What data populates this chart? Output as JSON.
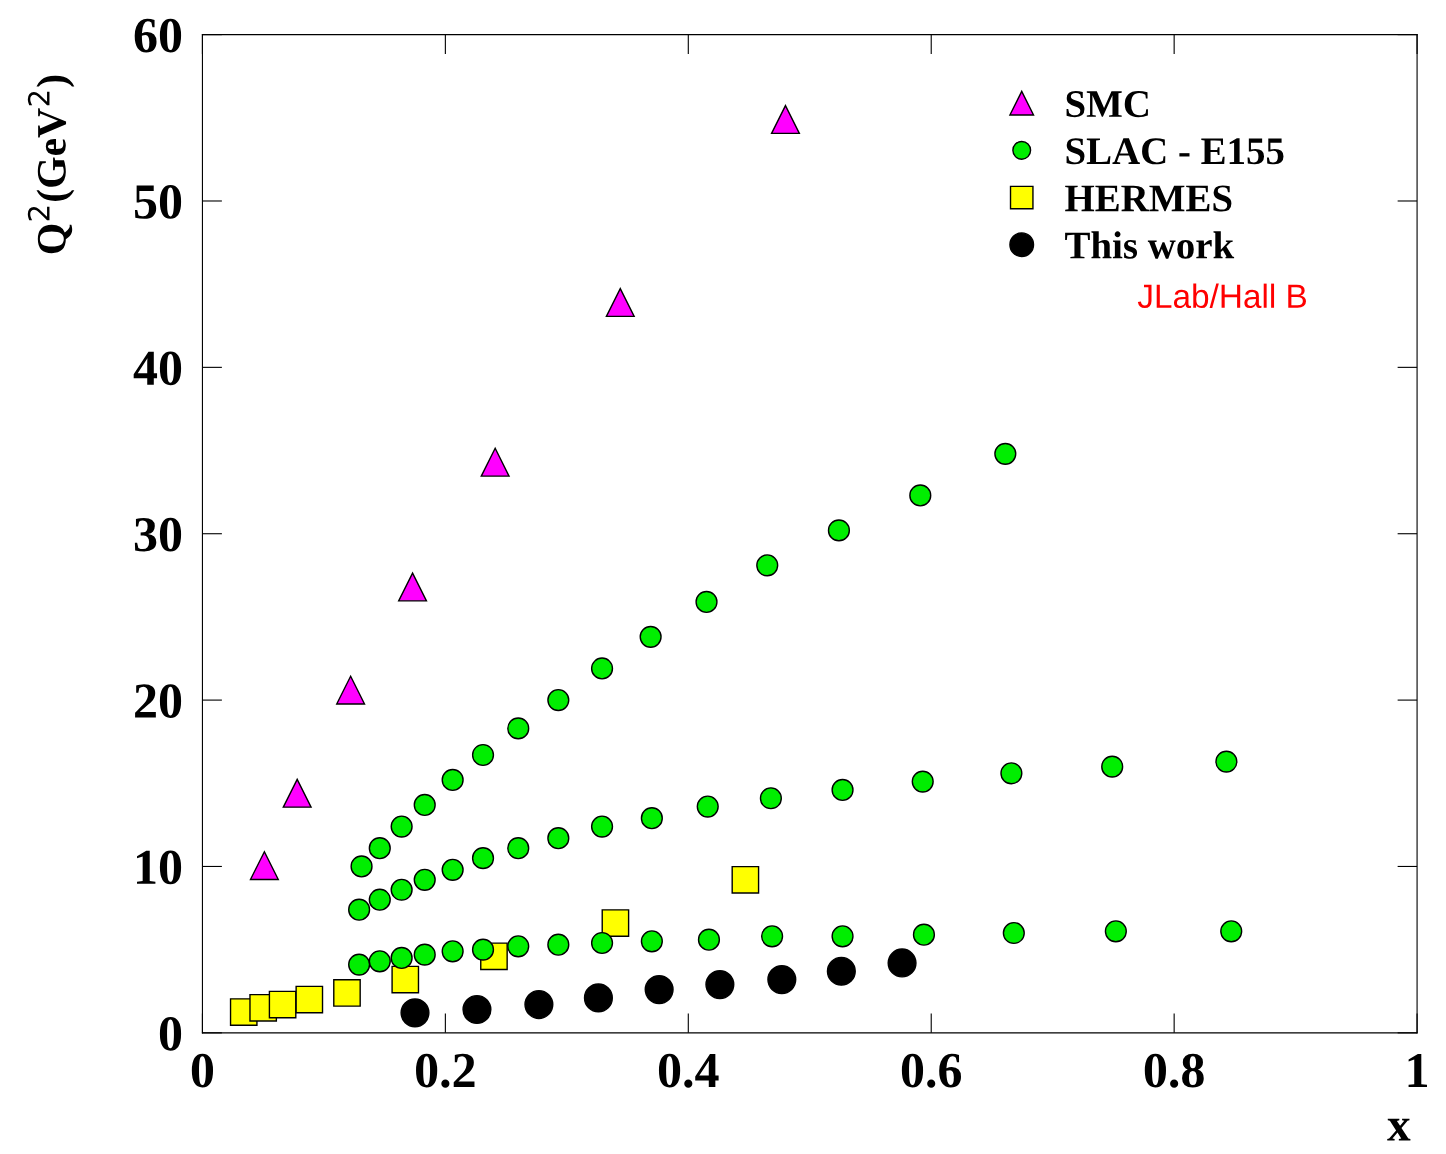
{
  "chart_data": {
    "type": "scatter",
    "xlabel": "x",
    "ylabel": "Q$^{2}$(GeV$^{2}$)",
    "xlim": [
      0,
      1
    ],
    "ylim": [
      0,
      60
    ],
    "xticks": [
      0,
      0.2,
      0.4,
      0.6,
      0.8,
      1
    ],
    "yticks": [
      0,
      10,
      20,
      30,
      40,
      50,
      60
    ],
    "grid": false,
    "legend": "top right",
    "annotations": [
      "JLab/Hall B"
    ],
    "series": [
      {
        "name": "SMC",
        "color": "#ff00ff",
        "marker": "triangle",
        "x": [
          0.051,
          0.078,
          0.122,
          0.173,
          0.241,
          0.344,
          0.48
        ],
        "values": [
          10.05,
          14.4,
          20.6,
          26.8,
          34.3,
          43.9,
          54.9
        ]
      },
      {
        "name": "SLAC - E155",
        "color": "#00ee00",
        "marker": "circle",
        "x": [
          0.131,
          0.146,
          0.164,
          0.183,
          0.206,
          0.231,
          0.26,
          0.293,
          0.329,
          0.369,
          0.415,
          0.465,
          0.524,
          0.591,
          0.661,
          0.129,
          0.146,
          0.164,
          0.183,
          0.206,
          0.231,
          0.26,
          0.293,
          0.329,
          0.37,
          0.416,
          0.468,
          0.527,
          0.593,
          0.666,
          0.749,
          0.843,
          0.129,
          0.146,
          0.164,
          0.183,
          0.206,
          0.231,
          0.26,
          0.293,
          0.329,
          0.37,
          0.417,
          0.469,
          0.527,
          0.594,
          0.668,
          0.752,
          0.847
        ],
        "values": [
          10.0,
          11.1,
          12.4,
          13.7,
          15.2,
          16.7,
          18.3,
          20.0,
          21.9,
          23.8,
          25.9,
          28.1,
          30.2,
          32.3,
          34.8,
          7.4,
          8.0,
          8.6,
          9.2,
          9.8,
          10.5,
          11.1,
          11.7,
          12.4,
          12.9,
          13.6,
          14.1,
          14.6,
          15.1,
          15.6,
          16.0,
          16.3,
          4.1,
          4.3,
          4.5,
          4.7,
          4.9,
          5.0,
          5.2,
          5.3,
          5.4,
          5.5,
          5.6,
          5.8,
          5.8,
          5.9,
          6.0,
          6.1,
          6.1
        ]
      },
      {
        "name": "HERMES",
        "color": "#ffff00",
        "marker": "square",
        "x": [
          0.034,
          0.05,
          0.066,
          0.088,
          0.119,
          0.167,
          0.24,
          0.34,
          0.447
        ],
        "values": [
          1.25,
          1.5,
          1.7,
          2.0,
          2.4,
          3.2,
          4.6,
          6.6,
          9.2
        ]
      },
      {
        "name": "This work",
        "color": "#000000",
        "marker": "circle",
        "x": [
          0.175,
          0.226,
          0.277,
          0.326,
          0.376,
          0.426,
          0.477,
          0.526,
          0.576
        ],
        "values": [
          1.2,
          1.4,
          1.7,
          2.1,
          2.6,
          2.9,
          3.2,
          3.7,
          4.2
        ]
      }
    ]
  }
}
